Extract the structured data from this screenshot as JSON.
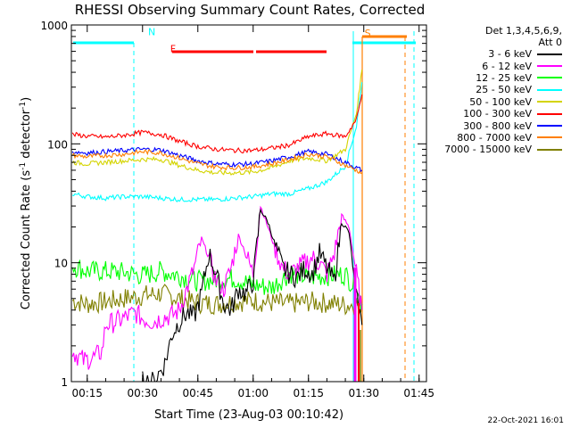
{
  "chart_data": {
    "type": "line",
    "title": "RHESSI Observing Summary Count Rates, Corrected",
    "xlabel": "Start Time (23-Aug-03 00:10:42)",
    "ylabel": "Corrected Count Rate (s-1 detector-1)",
    "ylabel_parts": [
      "Corrected Count Rate (s",
      "-1",
      " detector",
      "-1",
      ")"
    ],
    "yscale": "log",
    "xlim": [
      10.7,
      107.0
    ],
    "ylim": [
      1,
      1000
    ],
    "x_ticks": [
      {
        "v": 15,
        "label": "00:15"
      },
      {
        "v": 30,
        "label": "00:30"
      },
      {
        "v": 45,
        "label": "00:45"
      },
      {
        "v": 60,
        "label": "01:00"
      },
      {
        "v": 75,
        "label": "01:15"
      },
      {
        "v": 90,
        "label": "01:30"
      },
      {
        "v": 105,
        "label": "01:45"
      }
    ],
    "y_ticks": [
      {
        "v": 1,
        "label": "1"
      },
      {
        "v": 10,
        "label": "10"
      },
      {
        "v": 100,
        "label": "100"
      },
      {
        "v": 1000,
        "label": "1000"
      }
    ],
    "legend_header": [
      "Det 1,3,4,5,6,9,",
      "Att 0"
    ],
    "legend_position": "right",
    "series": [
      {
        "name": "3 - 6 keV",
        "color": "#000000",
        "x": [
          30,
          33,
          36,
          38,
          40,
          42,
          44,
          46,
          48,
          50,
          52,
          54,
          56,
          58,
          60,
          62,
          64,
          66,
          68,
          70,
          72,
          74,
          76,
          78,
          80,
          82,
          84,
          86,
          88,
          89.5
        ],
        "y": [
          1.0,
          1.0,
          1.4,
          2.5,
          3.2,
          3.8,
          3.5,
          5.5,
          12,
          8,
          4.5,
          4.0,
          6,
          5.5,
          7,
          28,
          22,
          14,
          9,
          8,
          7.5,
          9,
          8,
          12,
          9,
          7,
          22,
          18,
          5,
          3.0
        ]
      },
      {
        "name": "6 - 12 keV",
        "color": "#ff00ff",
        "x": [
          11,
          14,
          17,
          19,
          20,
          24,
          28,
          30,
          33,
          36,
          38,
          40,
          42,
          44,
          46,
          48,
          50,
          52,
          54,
          56,
          58,
          60,
          62,
          64,
          66,
          68,
          70,
          72,
          74,
          76,
          78,
          80,
          82,
          84,
          86,
          88,
          89.5
        ],
        "y": [
          1.8,
          1.5,
          1.6,
          1.8,
          3.0,
          3.3,
          3.8,
          3.4,
          3.2,
          3.5,
          3.6,
          4.0,
          6.0,
          9.0,
          16,
          11,
          7,
          6,
          9,
          17,
          12,
          8,
          30,
          20,
          13,
          9,
          8,
          9,
          10,
          11,
          10,
          8,
          12,
          25,
          20,
          8,
          4
        ]
      },
      {
        "name": "12 - 25 keV",
        "color": "#00ff00",
        "x": [
          11,
          15,
          20,
          25,
          30,
          35,
          40,
          45,
          50,
          55,
          60,
          65,
          70,
          75,
          80,
          85,
          88,
          89.5
        ],
        "y": [
          9.5,
          8.5,
          8.5,
          8.3,
          7.8,
          8.5,
          7.8,
          7.0,
          7.2,
          7.4,
          6.5,
          6.2,
          8.2,
          7.5,
          7.8,
          8.0,
          6.0,
          4.5
        ]
      },
      {
        "name": "25 - 50 keV",
        "color": "#00ffff",
        "x": [
          11,
          15,
          20,
          25,
          30,
          35,
          40,
          45,
          50,
          55,
          60,
          65,
          70,
          75,
          80,
          85,
          88,
          89.5
        ],
        "y": [
          38,
          36,
          35,
          36,
          36,
          35,
          34,
          34,
          34,
          35,
          36,
          38,
          38,
          42,
          48,
          65,
          140,
          330
        ]
      },
      {
        "name": "50 - 100 keV",
        "color": "#d4d400",
        "x": [
          11,
          15,
          20,
          25,
          30,
          35,
          40,
          45,
          50,
          55,
          60,
          65,
          70,
          75,
          80,
          85,
          88,
          89.5
        ],
        "y": [
          70,
          68,
          70,
          72,
          74,
          74,
          66,
          60,
          57,
          57,
          58,
          63,
          72,
          76,
          72,
          90,
          180,
          420
        ]
      },
      {
        "name": "100 - 300 keV",
        "color": "#ff0000",
        "x": [
          11,
          15,
          20,
          25,
          30,
          35,
          40,
          45,
          50,
          55,
          60,
          65,
          70,
          75,
          80,
          85,
          88,
          89.5
        ],
        "y": [
          120,
          116,
          114,
          118,
          125,
          120,
          105,
          95,
          90,
          88,
          88,
          92,
          98,
          115,
          122,
          115,
          160,
          260
        ]
      },
      {
        "name": "300 - 800 keV",
        "color": "#0000ff",
        "x": [
          11,
          15,
          20,
          25,
          30,
          35,
          40,
          45,
          50,
          55,
          60,
          65,
          70,
          75,
          80,
          85,
          88,
          89.5
        ],
        "y": [
          86,
          84,
          86,
          88,
          90,
          89,
          80,
          72,
          68,
          67,
          68,
          72,
          78,
          86,
          82,
          70,
          63,
          60
        ]
      },
      {
        "name": "800 - 7000 keV",
        "color": "#ff7f00",
        "x": [
          11,
          15,
          20,
          25,
          30,
          35,
          40,
          45,
          50,
          55,
          60,
          65,
          70,
          75,
          80,
          85,
          88,
          89.5
        ],
        "y": [
          80,
          78,
          80,
          82,
          86,
          84,
          76,
          68,
          64,
          63,
          64,
          68,
          74,
          82,
          78,
          66,
          60,
          57
        ]
      },
      {
        "name": "7000 - 15000 keV",
        "color": "#808000",
        "x": [
          11,
          15,
          20,
          25,
          30,
          35,
          40,
          45,
          50,
          55,
          60,
          65,
          70,
          75,
          80,
          85,
          88,
          89.5
        ],
        "y": [
          4.8,
          4.5,
          4.7,
          5.0,
          5.3,
          5.5,
          5.0,
          4.6,
          4.5,
          4.7,
          4.8,
          4.6,
          4.5,
          4.7,
          4.6,
          4.4,
          4.5,
          4.5
        ]
      }
    ],
    "annotations": [
      {
        "text": "N",
        "x": 31.5,
        "y": 820,
        "color": "#00ffff"
      },
      {
        "text": "F",
        "x": 37.5,
        "y": 590,
        "color": "#ff0000"
      },
      {
        "text": "S",
        "x": 90.2,
        "y": 800,
        "color": "#ff7f00"
      }
    ]
  },
  "footer": {
    "date": "22-Oct-2021 16:01"
  }
}
